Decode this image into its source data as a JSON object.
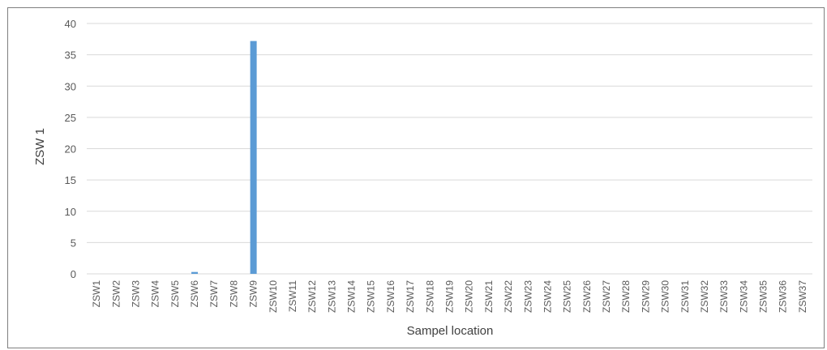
{
  "chart_data": {
    "type": "bar",
    "title": "",
    "xlabel": "Sampel location",
    "ylabel": "ZSW 1",
    "ylim": [
      0,
      40
    ],
    "yticks": [
      0,
      5,
      10,
      15,
      20,
      25,
      30,
      35,
      40
    ],
    "grid": true,
    "legend": "none",
    "bar_color": "#5b9bd5",
    "grid_color": "#d9d9d9",
    "categories": [
      "ZSW1",
      "ZSW2",
      "ZSW3",
      "ZSW4",
      "ZSW5",
      "ZSW6",
      "ZSW7",
      "ZSW8",
      "ZSW9",
      "ZSW10",
      "ZSW11",
      "ZSW12",
      "ZSW13",
      "ZSW14",
      "ZSW15",
      "ZSW16",
      "ZSW17",
      "ZSW18",
      "ZSW19",
      "ZSW20",
      "ZSW21",
      "ZSW22",
      "ZSW23",
      "ZSW24",
      "ZSW25",
      "ZSW26",
      "ZSW27",
      "ZSW28",
      "ZSW29",
      "ZSW30",
      "ZSW31",
      "ZSW32",
      "ZSW33",
      "ZSW34",
      "ZSW35",
      "ZSW36",
      "ZSW37"
    ],
    "values": [
      0,
      0,
      0,
      0,
      0,
      0.3,
      0,
      0,
      37.2,
      0,
      0,
      0,
      0,
      0,
      0,
      0,
      0,
      0,
      0,
      0,
      0,
      0,
      0,
      0,
      0,
      0,
      0,
      0,
      0,
      0,
      0,
      0,
      0,
      0,
      0,
      0,
      0
    ]
  }
}
